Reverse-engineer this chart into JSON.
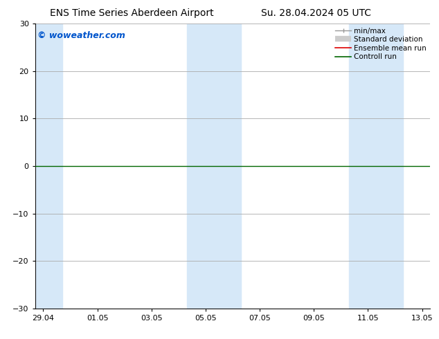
{
  "title_left": "ENS Time Series Aberdeen Airport",
  "title_right": "Su. 28.04.2024 05 UTC",
  "watermark": "© woweather.com",
  "watermark_color": "#0055cc",
  "xlim": [
    -0.3,
    14.3
  ],
  "ylim": [
    -30,
    30
  ],
  "yticks": [
    -30,
    -20,
    -10,
    0,
    10,
    20,
    30
  ],
  "xtick_labels": [
    "29.04",
    "01.05",
    "03.05",
    "05.05",
    "07.05",
    "09.05",
    "11.05",
    "13.05"
  ],
  "xtick_positions": [
    0,
    2,
    4,
    6,
    8,
    10,
    12,
    14
  ],
  "background_color": "#ffffff",
  "plot_bg_color": "#ffffff",
  "grid_color": "#aaaaaa",
  "zero_line_color": "#006600",
  "shaded_bands": [
    {
      "x_start": -0.3,
      "x_end": 0.7,
      "color": "#d6e8f8"
    },
    {
      "x_start": 5.3,
      "x_end": 7.3,
      "color": "#d6e8f8"
    },
    {
      "x_start": 11.3,
      "x_end": 13.3,
      "color": "#d6e8f8"
    }
  ],
  "title_fontsize": 10,
  "tick_fontsize": 8,
  "legend_fontsize": 7.5,
  "watermark_fontsize": 9
}
